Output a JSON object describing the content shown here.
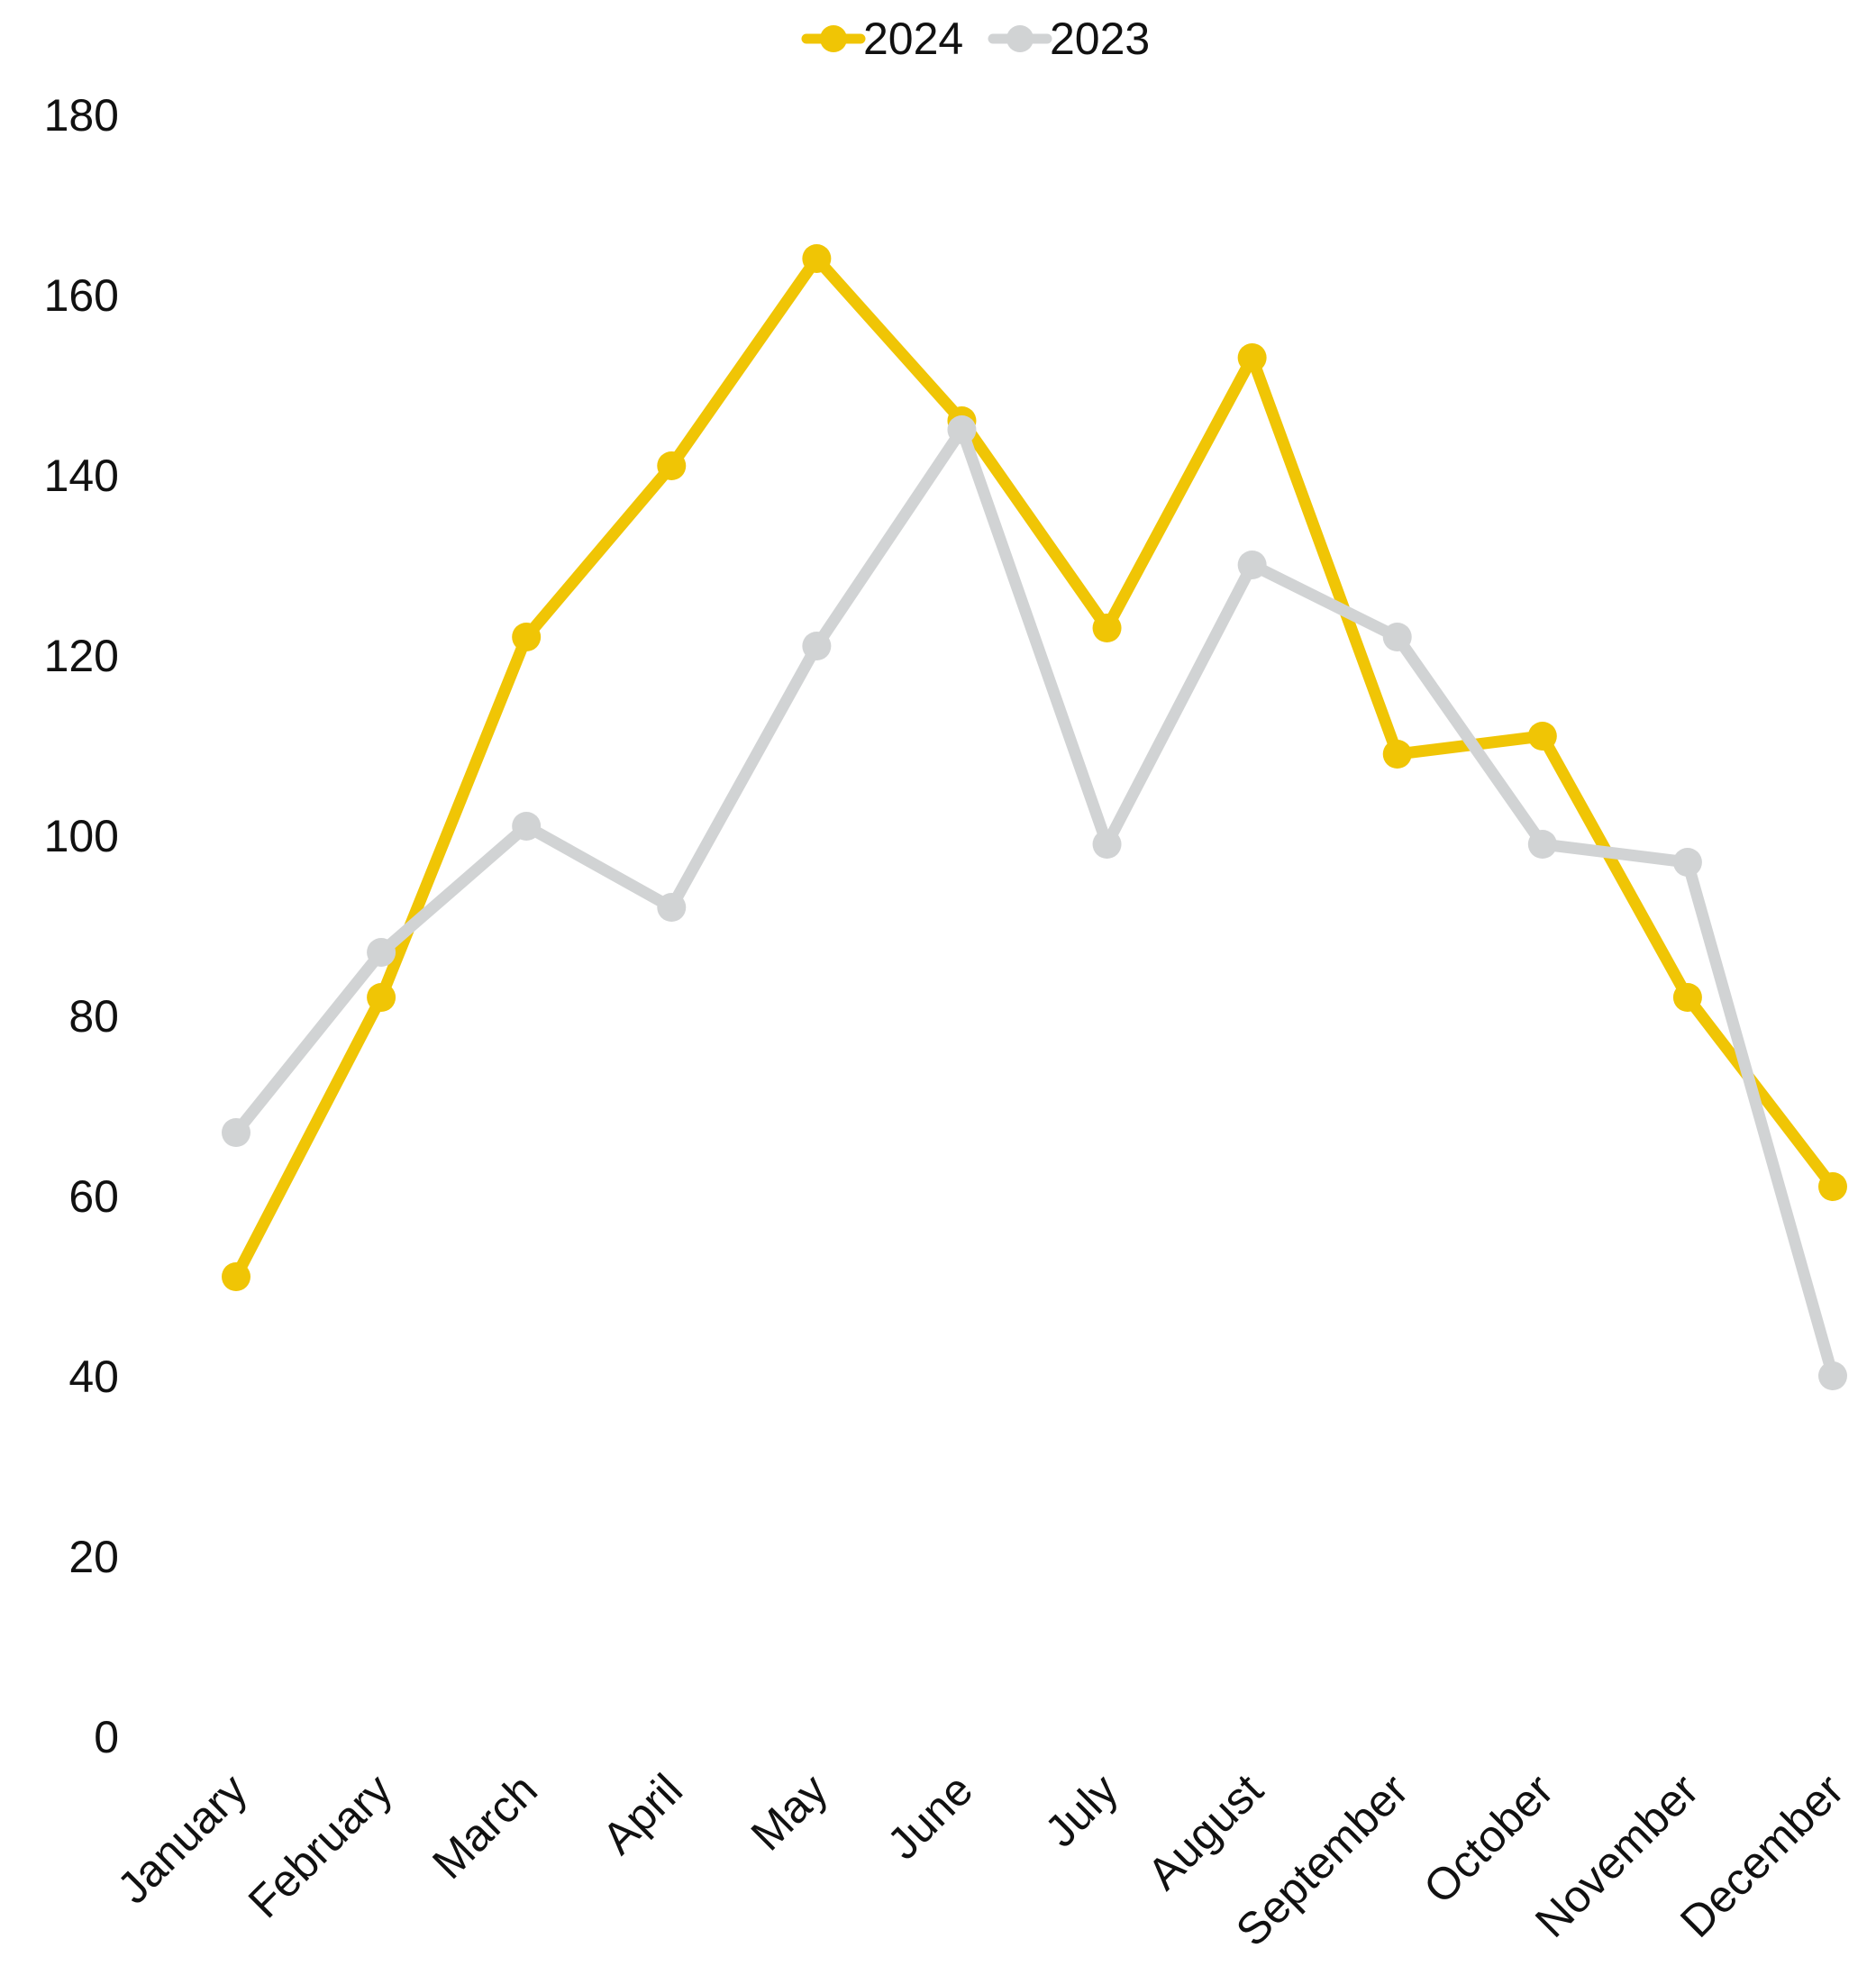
{
  "chart_data": {
    "type": "line",
    "categories": [
      "January",
      "February",
      "March",
      "April",
      "May",
      "June",
      "July",
      "August",
      "September",
      "October",
      "November",
      "December"
    ],
    "series": [
      {
        "name": "2024",
        "color": "#F0C505",
        "values": [
          51,
          82,
          122,
          141,
          164,
          146,
          123,
          153,
          109,
          111,
          82,
          61
        ]
      },
      {
        "name": "2023",
        "color": "#D1D3D4",
        "values": [
          67,
          87,
          101,
          92,
          121,
          145,
          99,
          130,
          122,
          99,
          97,
          40
        ]
      }
    ],
    "ylim": [
      0,
      180
    ],
    "yticks": [
      "0",
      "20",
      "40",
      "60",
      "80",
      "100",
      "120",
      "140",
      "160",
      "180"
    ],
    "grid": "vertical drop lines at each category",
    "legend": "top-center"
  }
}
